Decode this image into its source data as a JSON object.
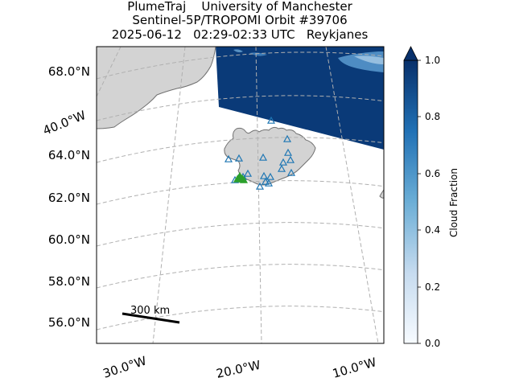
{
  "title": {
    "line1": "PlumeTraj    University of Manchester",
    "line2": "Sentinel-5P/TROPOMI Orbit #39706",
    "line3": "2025-06-12   02:29-02:33 UTC   Reykjanes"
  },
  "map": {
    "lat_labels": [
      "68.0°N",
      "64.0°N",
      "62.0°N",
      "60.0°N",
      "58.0°N",
      "56.0°N"
    ],
    "lon_labels": [
      "40.0°W",
      "30.0°W",
      "20.0°W",
      "10.0°W"
    ],
    "scale_bar_label": "300 km",
    "land_color": "#d3d3d3",
    "coast_color": "#707070",
    "grid_color": "#b0b0b0",
    "marker_color_blue": "#1f77b4",
    "marker_color_green": "#2ca02c"
  },
  "colorbar": {
    "label": "Cloud Fraction",
    "ticks": [
      "0.0",
      "0.2",
      "0.4",
      "0.6",
      "0.8",
      "1.0"
    ],
    "colormap": "Blues",
    "low_color": "#f7fbff",
    "high_color": "#08306b"
  }
}
